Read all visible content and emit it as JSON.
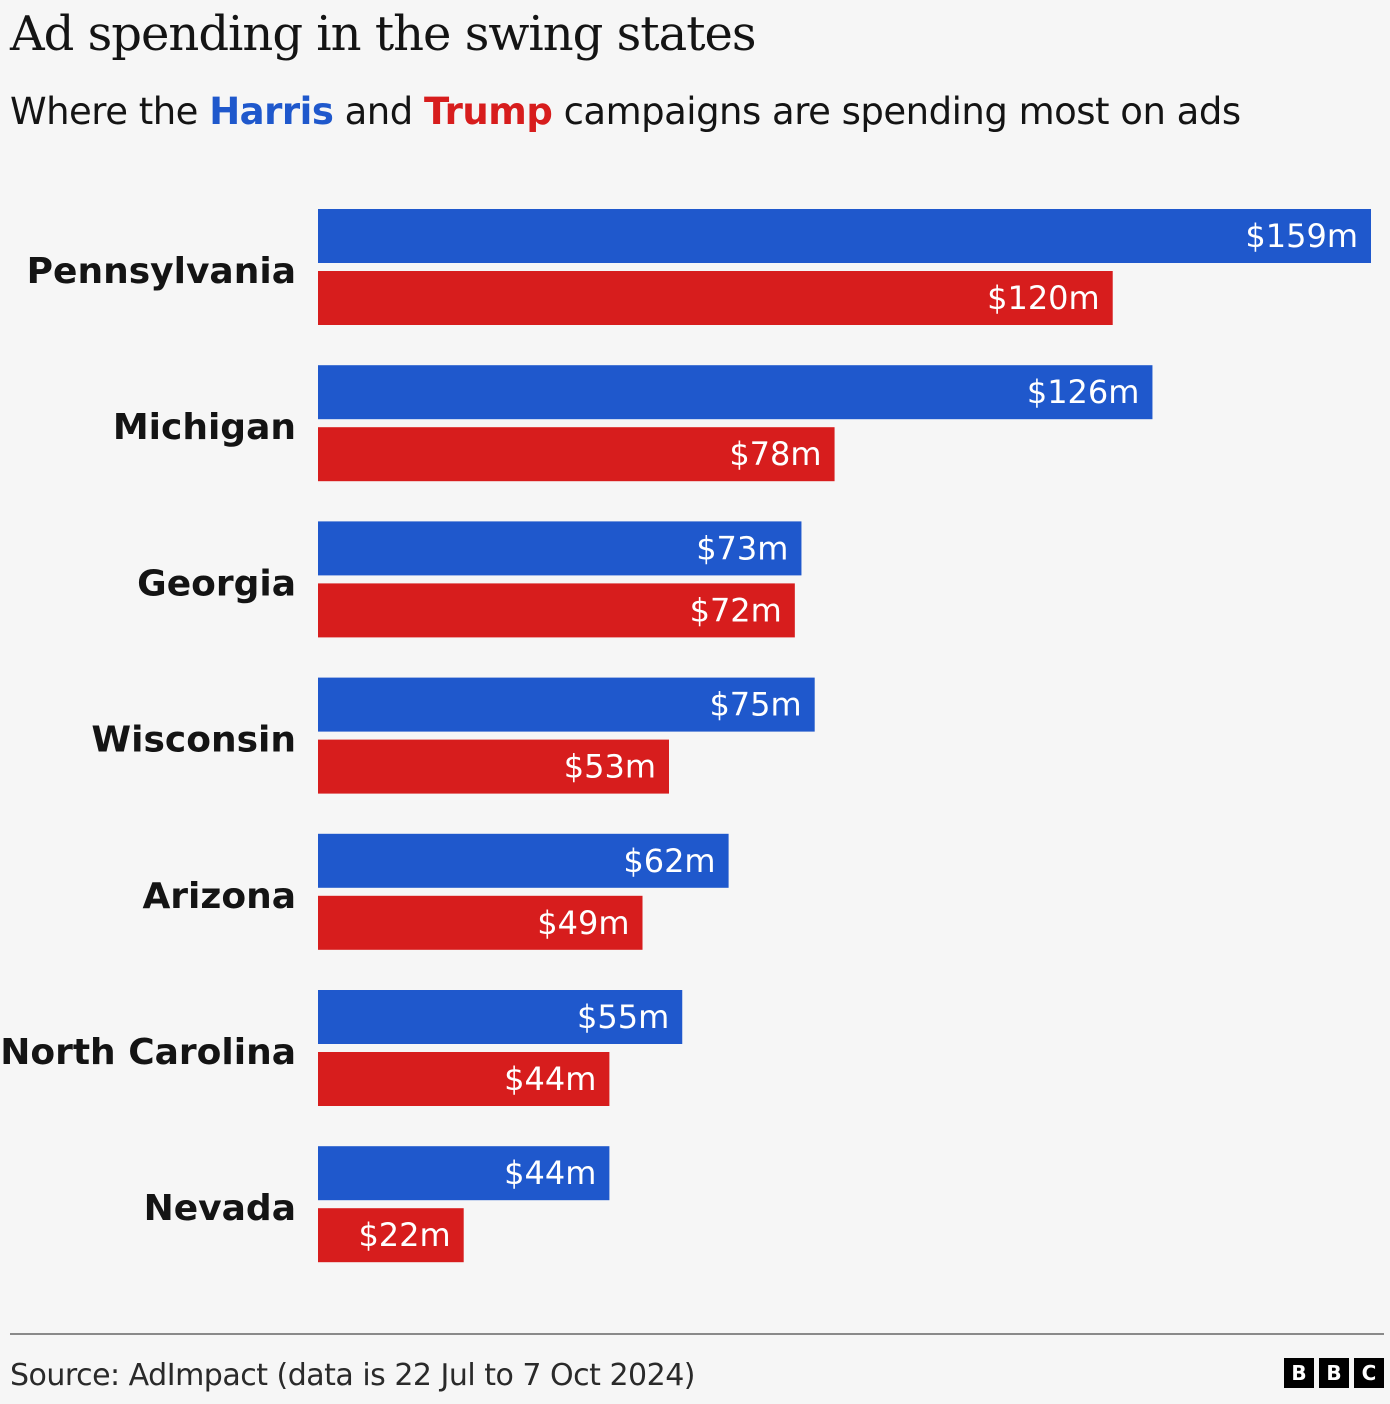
{
  "title": "Ad spending in the swing states",
  "subtitle": {
    "prefix": "Where the ",
    "harris": "Harris",
    "middle": " and ",
    "trump": "Trump",
    "suffix": " campaigns are spending most on ads"
  },
  "source": "Source: AdImpact (data is 22 Jul to 7 Oct 2024)",
  "logo": [
    "B",
    "B",
    "C"
  ],
  "colors": {
    "harris": "#1f58cc",
    "trump": "#d71d1d",
    "background": "#f6f6f6"
  },
  "chart_data": {
    "type": "bar",
    "orientation": "horizontal",
    "title": "Ad spending in the swing states",
    "subtitle": "Where the Harris and Trump campaigns are spending most on ads",
    "xlabel": "",
    "ylabel": "",
    "unit": "$m",
    "xlim": [
      0,
      159
    ],
    "grid": false,
    "categories": [
      "Pennsylvania",
      "Michigan",
      "Georgia",
      "Wisconsin",
      "Arizona",
      "North Carolina",
      "Nevada"
    ],
    "series": [
      {
        "name": "Harris",
        "color": "#1f58cc",
        "values": [
          159,
          126,
          73,
          75,
          62,
          55,
          44
        ],
        "labels": [
          "$159m",
          "$126m",
          "$73m",
          "$75m",
          "$62m",
          "$55m",
          "$44m"
        ]
      },
      {
        "name": "Trump",
        "color": "#d71d1d",
        "values": [
          120,
          78,
          72,
          53,
          49,
          44,
          22
        ],
        "labels": [
          "$120m",
          "$78m",
          "$72m",
          "$53m",
          "$49m",
          "$44m",
          "$22m"
        ]
      }
    ],
    "source": "AdImpact (data is 22 Jul to 7 Oct 2024)"
  }
}
